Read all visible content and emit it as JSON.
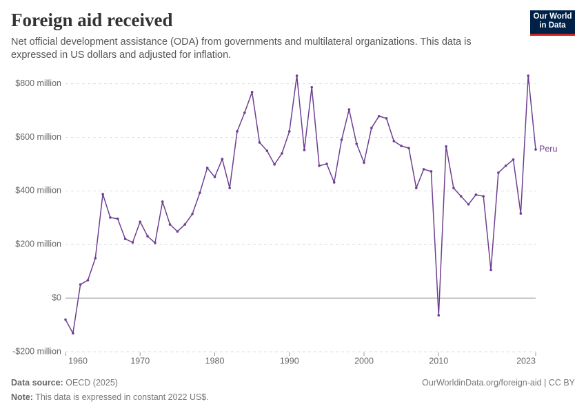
{
  "chart_data": {
    "type": "line",
    "title": "Foreign aid received",
    "subtitle": "Net official development assistance (ODA) from governments and multilateral organizations. This data is expressed in US dollars and adjusted for inflation.",
    "logo": [
      "Our World",
      "in Data"
    ],
    "x": [
      1960,
      1961,
      1962,
      1963,
      1964,
      1965,
      1966,
      1967,
      1968,
      1969,
      1970,
      1971,
      1972,
      1973,
      1974,
      1975,
      1976,
      1977,
      1978,
      1979,
      1980,
      1981,
      1982,
      1983,
      1984,
      1985,
      1986,
      1987,
      1988,
      1989,
      1990,
      1991,
      1992,
      1993,
      1994,
      1995,
      1996,
      1997,
      1998,
      1999,
      2000,
      2001,
      2002,
      2003,
      2004,
      2005,
      2006,
      2007,
      2008,
      2009,
      2010,
      2011,
      2012,
      2013,
      2014,
      2015,
      2016,
      2017,
      2018,
      2019,
      2020,
      2021,
      2022,
      2023
    ],
    "series": [
      {
        "name": "Peru",
        "color": "#6d3e91",
        "values": [
          -80,
          -131,
          51,
          67,
          149,
          388,
          301,
          296,
          221,
          208,
          285,
          231,
          206,
          360,
          275,
          249,
          275,
          314,
          393,
          486,
          452,
          519,
          411,
          622,
          692,
          769,
          581,
          550,
          499,
          540,
          622,
          830,
          553,
          787,
          494,
          501,
          432,
          591,
          704,
          576,
          506,
          635,
          679,
          671,
          586,
          568,
          560,
          411,
          481,
          473,
          -64,
          566,
          411,
          380,
          350,
          386,
          380,
          105,
          468,
          494,
          517,
          316,
          830,
          555
        ]
      }
    ],
    "xlim": [
      1960,
      2023
    ],
    "xticks": [
      1960,
      1970,
      1980,
      1990,
      2000,
      2010,
      2023
    ],
    "ylim": [
      -200,
      830
    ],
    "yticks": [
      {
        "value": -200,
        "label": "-$200 million"
      },
      {
        "value": 0,
        "label": "$0"
      },
      {
        "value": 200,
        "label": "$200 million"
      },
      {
        "value": 400,
        "label": "$400 million"
      },
      {
        "value": 600,
        "label": "$600 million"
      },
      {
        "value": 800,
        "label": "$800 million"
      }
    ],
    "grid": true,
    "source_label": "Data source:",
    "source": "OECD (2025)",
    "note_label": "Note:",
    "note": "This data is expressed in constant 2022 US$.",
    "url": "OurWorldinData.org/foreign-aid | CC BY"
  }
}
